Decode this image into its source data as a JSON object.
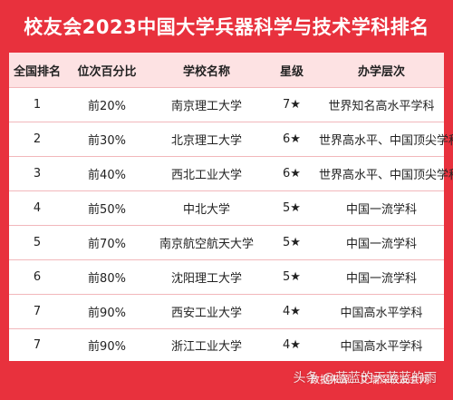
{
  "title": "校友会2023中国大学兵器科学与技术学科排名",
  "table": {
    "headers": [
      "全国排名",
      "位次百分比",
      "学校名称",
      "星级",
      "办学层次"
    ],
    "rows": [
      [
        "1",
        "前20%",
        "南京理工大学",
        "7★",
        "世界知名高水平学科"
      ],
      [
        "2",
        "前30%",
        "北京理工大学",
        "6★",
        "世界高水平、中国顶尖学科"
      ],
      [
        "3",
        "前40%",
        "西北工业大学",
        "6★",
        "世界高水平、中国顶尖学科"
      ],
      [
        "4",
        "前50%",
        "中北大学",
        "5★",
        "中国一流学科"
      ],
      [
        "5",
        "前70%",
        "南京航空航天大学",
        "5★",
        "中国一流学科"
      ],
      [
        "6",
        "前80%",
        "沈阳理工大学",
        "5★",
        "中国一流学科"
      ],
      [
        "7",
        "前90%",
        "西安工业大学",
        "4★",
        "中国高水平学科"
      ],
      [
        "7",
        "前90%",
        "浙江工业大学",
        "4★",
        "中国高水平学科"
      ]
    ]
  },
  "footer": {
    "source": "数据来源：艾瑞深校友会网"
  },
  "watermark": "头条 @蓝蓝的天蓝蓝的雨",
  "colors": {
    "background": "#e8313d",
    "header_row": "#fde2e3",
    "divider": "#f2b7bb"
  }
}
